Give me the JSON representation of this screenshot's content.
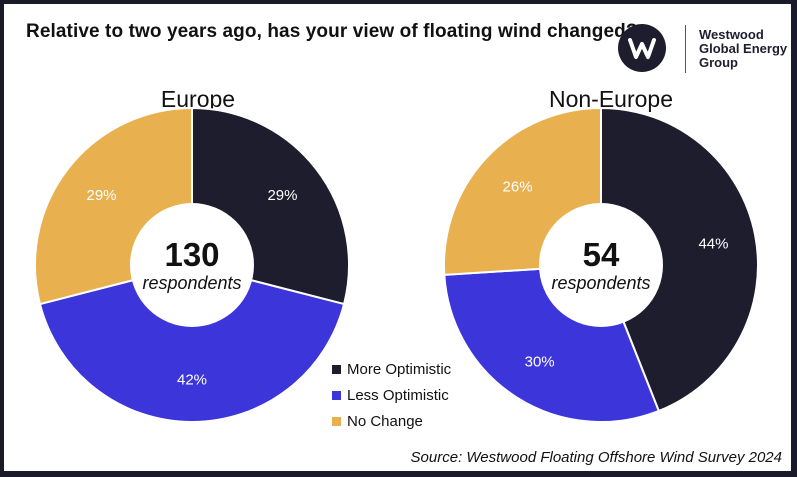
{
  "header": {
    "title": "Relative to two years ago, has your view of floating wind changed?"
  },
  "logo": {
    "line1": "Westwood",
    "line2": "Global Energy",
    "line3": "Group"
  },
  "colors": {
    "more_optimistic": "#1e1d2e",
    "less_optimistic": "#3c35d9",
    "no_change": "#e8b04e"
  },
  "chart_data": [
    {
      "type": "pie",
      "title": "Europe",
      "center_value": "130",
      "center_label": "respondents",
      "slices": [
        {
          "name": "More Optimistic",
          "value": 29,
          "label": "29%",
          "color": "#1e1d2e"
        },
        {
          "name": "Less Optimistic",
          "value": 42,
          "label": "42%",
          "color": "#3c35d9"
        },
        {
          "name": "No Change",
          "value": 29,
          "label": "29%",
          "color": "#e8b04e"
        }
      ]
    },
    {
      "type": "pie",
      "title": "Non-Europe",
      "center_value": "54",
      "center_label": "respondents",
      "slices": [
        {
          "name": "More Optimistic",
          "value": 44,
          "label": "44%",
          "color": "#1e1d2e"
        },
        {
          "name": "Less Optimistic",
          "value": 30,
          "label": "30%",
          "color": "#3c35d9"
        },
        {
          "name": "No Change",
          "value": 26,
          "label": "26%",
          "color": "#e8b04e"
        }
      ]
    }
  ],
  "legend": {
    "position": "bottom-center",
    "items": [
      {
        "label": "More Optimistic",
        "color": "#1e1d2e"
      },
      {
        "label": "Less Optimistic",
        "color": "#3c35d9"
      },
      {
        "label": "No Change",
        "color": "#e8b04e"
      }
    ]
  },
  "footer": {
    "source": "Source: Westwood Floating Offshore Wind Survey 2024"
  }
}
